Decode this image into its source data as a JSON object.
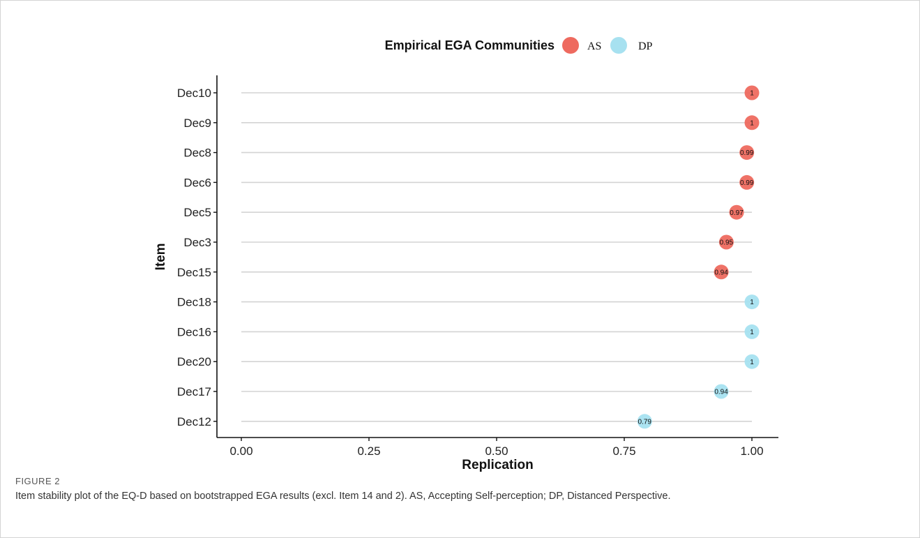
{
  "caption": {
    "label": "FIGURE 2",
    "text": "Item stability plot of the EQ-D based on bootstrapped EGA results (excl. Item 14 and 2). AS, Accepting Self-perception; DP, Distanced Perspective."
  },
  "chart_data": {
    "type": "scatter",
    "xlabel": "Replication",
    "ylabel": "Item",
    "xlim": [
      0,
      1
    ],
    "x_ticks": [
      "0.00",
      "0.25",
      "0.50",
      "0.75",
      "1.00"
    ],
    "x_tick_values": [
      0,
      0.25,
      0.5,
      0.75,
      1.0
    ],
    "grid": "horizontal guide lines per item",
    "legend": {
      "title": "Empirical EGA Communities",
      "placement": "top",
      "entries": [
        {
          "key": "AS",
          "color": "#ee6a5f"
        },
        {
          "key": "DP",
          "color": "#a7e1f0"
        }
      ]
    },
    "points": [
      {
        "item": "Dec10",
        "value": 1.0,
        "label": "1",
        "community": "AS"
      },
      {
        "item": "Dec9",
        "value": 1.0,
        "label": "1",
        "community": "AS"
      },
      {
        "item": "Dec8",
        "value": 0.99,
        "label": "0.99",
        "community": "AS"
      },
      {
        "item": "Dec6",
        "value": 0.99,
        "label": "0.99",
        "community": "AS"
      },
      {
        "item": "Dec5",
        "value": 0.97,
        "label": "0.97",
        "community": "AS"
      },
      {
        "item": "Dec3",
        "value": 0.95,
        "label": "0.95",
        "community": "AS"
      },
      {
        "item": "Dec15",
        "value": 0.94,
        "label": "0.94",
        "community": "AS"
      },
      {
        "item": "Dec18",
        "value": 1.0,
        "label": "1",
        "community": "DP"
      },
      {
        "item": "Dec16",
        "value": 1.0,
        "label": "1",
        "community": "DP"
      },
      {
        "item": "Dec20",
        "value": 1.0,
        "label": "1",
        "community": "DP"
      },
      {
        "item": "Dec17",
        "value": 0.94,
        "label": "0.94",
        "community": "DP"
      },
      {
        "item": "Dec12",
        "value": 0.79,
        "label": "0.79",
        "community": "DP"
      }
    ]
  }
}
